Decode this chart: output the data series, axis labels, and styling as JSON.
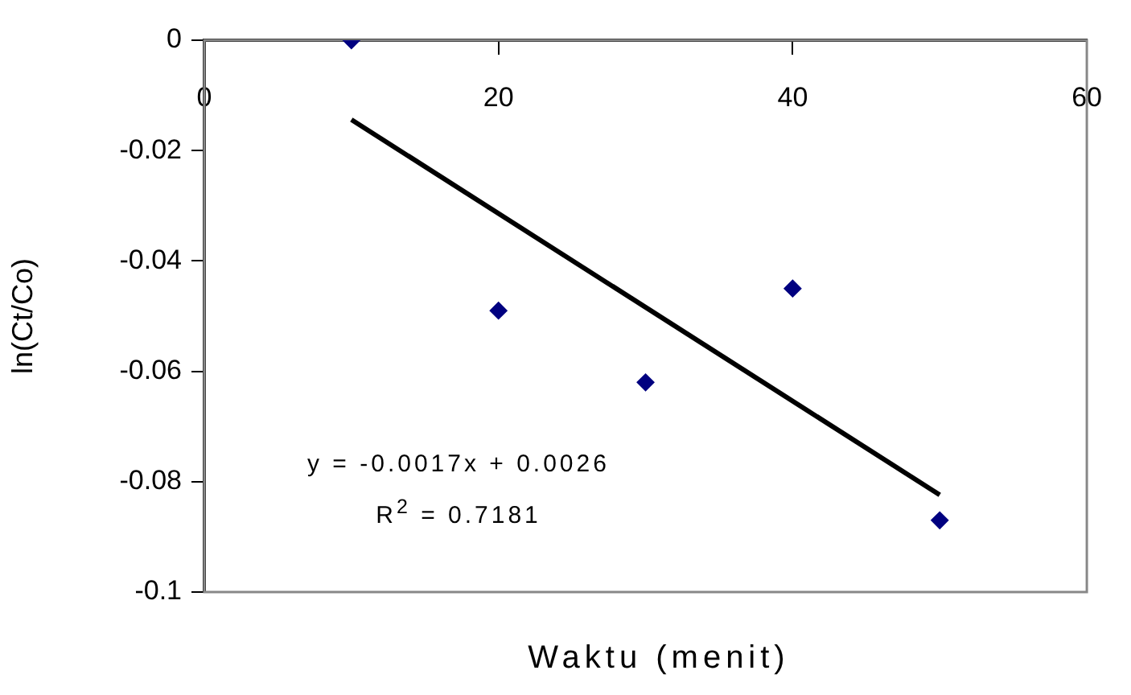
{
  "chart_data": {
    "type": "scatter",
    "xlabel": "Waktu (menit)",
    "ylabel": "ln(Ct/Co)",
    "series": [
      {
        "marker": "diamond",
        "color": "#000080",
        "x": [
          10,
          20,
          30,
          40,
          50
        ],
        "values": [
          0,
          -0.049,
          -0.062,
          -0.045,
          -0.087
        ]
      },
      {
        "type": "line",
        "marker": "none",
        "color": "#000000",
        "x": [
          10,
          50
        ],
        "values": [
          -0.0144,
          -0.0824
        ]
      }
    ],
    "xlim": [
      0,
      60
    ],
    "xticks": [
      0,
      20,
      40,
      60
    ],
    "ylim": [
      -0.1,
      0
    ],
    "yticks": [
      0,
      -0.02,
      -0.04,
      -0.06,
      -0.08,
      -0.1
    ],
    "annotations": [
      "y = -0.0017x + 0.0026",
      "R$^{2}$ = 0.7181"
    ],
    "grid": false,
    "legend": false
  }
}
